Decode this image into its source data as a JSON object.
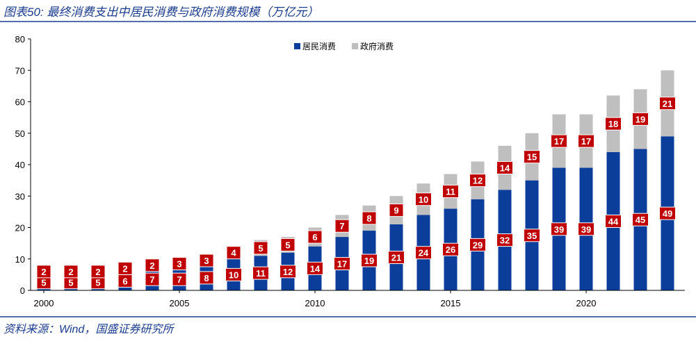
{
  "title": "图表50: 最终消费支出中居民消费与政府消费规模（万亿元）",
  "source": "资料来源：Wind，国盛证券研究所",
  "colors": {
    "header_line": "#1b3d8f",
    "label_box": "#c00000",
    "label_text": "#ffffff",
    "axis": "#000000"
  },
  "chart_data": {
    "type": "bar",
    "stacked": true,
    "categories": [
      "2000",
      "2001",
      "2002",
      "2003",
      "2004",
      "2005",
      "2006",
      "2007",
      "2008",
      "2009",
      "2010",
      "2011",
      "2012",
      "2013",
      "2014",
      "2015",
      "2016",
      "2017",
      "2018",
      "2019",
      "2020",
      "2021",
      "2022",
      "2023"
    ],
    "series": [
      {
        "name": "居民消费",
        "color": "#0b3d9a",
        "values": [
          5,
          5,
          5,
          6,
          7,
          7,
          8,
          10,
          11,
          12,
          14,
          17,
          19,
          21,
          24,
          26,
          29,
          32,
          35,
          39,
          39,
          44,
          45,
          49
        ]
      },
      {
        "name": "政府消费",
        "color": "#bfbfbf",
        "values": [
          2,
          2,
          2,
          2,
          2,
          3,
          3,
          4,
          5,
          5,
          6,
          7,
          8,
          9,
          10,
          11,
          12,
          14,
          15,
          17,
          17,
          18,
          19,
          21
        ]
      }
    ],
    "data_labels": true,
    "ylim": [
      0,
      80
    ],
    "yticks": [
      0,
      10,
      20,
      30,
      40,
      50,
      60,
      70,
      80
    ],
    "xticks": [
      "2000",
      "2005",
      "2010",
      "2015",
      "2020"
    ],
    "legend": "top-center",
    "grid": false
  }
}
